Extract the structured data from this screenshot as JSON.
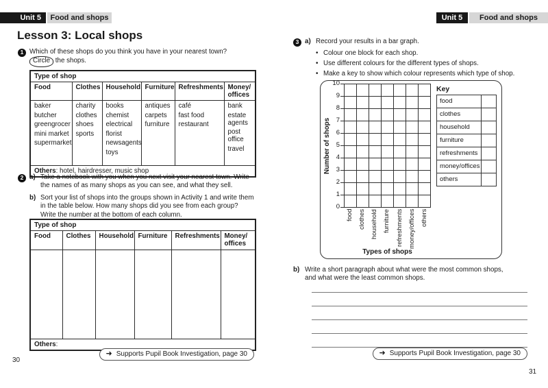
{
  "icons": {
    "arrow": "➜"
  },
  "header_left": {
    "unit": "Unit 5",
    "topic": "Food and shops"
  },
  "header_right": {
    "unit": "Unit 5",
    "topic": "Food and shops"
  },
  "left": {
    "title": "Lesson 3: Local shops",
    "page_number": "30",
    "support": "Supports Pupil Book Investigation, page 30",
    "activity1": {
      "num": "1",
      "intro": "Which of these shops do you think you have in your nearest town?",
      "circle_word": "Circle",
      "after_circle": " the shops.",
      "table": {
        "title": "Type of shop",
        "columns": [
          "Food",
          "Clothes",
          "Household",
          "Furniture",
          "Refreshments",
          "Money/ offices"
        ],
        "cells": {
          "food": [
            "baker",
            "butcher",
            "greengrocer",
            "mini market",
            "supermarket"
          ],
          "clothes": [
            "charity",
            "clothes",
            "shoes",
            "sports"
          ],
          "household": [
            "books",
            "chemist",
            "electrical",
            "florist",
            "newsagents",
            "toys"
          ],
          "furniture": [
            "antiques",
            "carpets",
            "furniture"
          ],
          "refreshments": [
            "café",
            "fast food",
            "restaurant"
          ],
          "money": [
            "bank",
            "estate agents",
            "post office",
            "travel"
          ]
        },
        "others_label": "Others",
        "others_rest": ": hotel, hairdresser, music shop"
      }
    },
    "activity2": {
      "num": "2",
      "a_label": "a)",
      "a_text": "Take a notebook with you when you next visit your nearest town. Write the names of as many shops as you can see, and what they sell.",
      "b_label": "b)",
      "b_text": "Sort your list of shops into the groups shown in Activity 1 and write them in the table below. How many shops did you see from each group? Write the number at the bottom of each column.",
      "table": {
        "title": "Type of shop",
        "columns": [
          "Food",
          "Clothes",
          "Household",
          "Furniture",
          "Refreshments",
          "Money/ offices"
        ],
        "others_label": "Others",
        "others_rest": ":"
      }
    }
  },
  "right": {
    "page_number": "31",
    "support": "Supports Pupil Book Investigation, page 30",
    "activity3": {
      "num": "3",
      "a_label": "a)",
      "a_text": "Record your results in a bar graph.",
      "bullets": [
        "Colour one block for each shop.",
        "Use different colours for the different types of shops.",
        "Make a key to show which colour represents which type of shop."
      ],
      "b_label": "b)",
      "b_text": "Write a short paragraph about what were the most common shops, and what were the least common shops."
    }
  },
  "chart_data": {
    "type": "bar",
    "title": "",
    "xlabel": "Types of shops",
    "ylabel": "Number of shops",
    "categories": [
      "food",
      "clothes",
      "household",
      "furniture",
      "refreshments",
      "money/offices",
      "others"
    ],
    "values": [],
    "y_ticks": [
      "10",
      "9",
      "8",
      "7",
      "6",
      "5",
      "4",
      "3",
      "2",
      "1",
      "0"
    ],
    "ylim": [
      0,
      10
    ],
    "grid": true,
    "legend_position": "right",
    "key_title": "Key",
    "key_items": [
      "food",
      "clothes",
      "household",
      "furniture",
      "refreshments",
      "money/offices",
      "others"
    ]
  }
}
